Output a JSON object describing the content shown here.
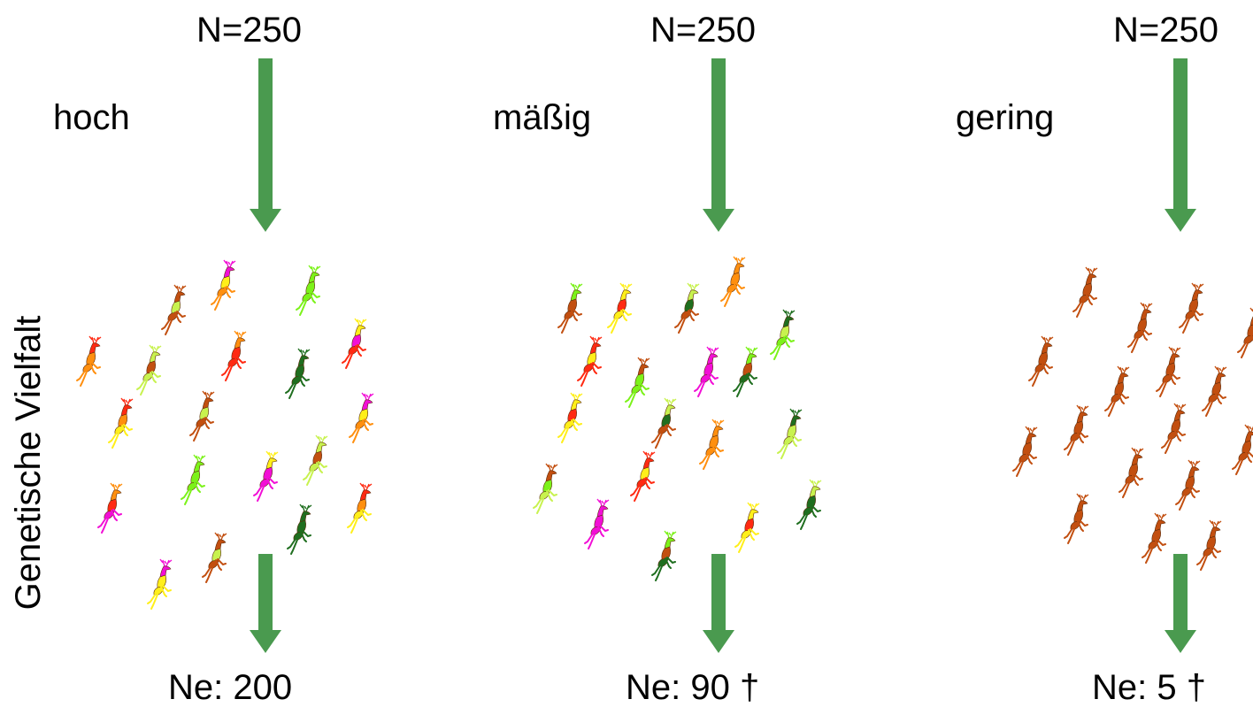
{
  "y_axis_label": "Genetische Vielfalt",
  "colors": {
    "arrow": "#4a9a4f",
    "deer_palette": [
      "#ff2a12",
      "#7cf21a",
      "#ff8f0f",
      "#c24f10",
      "#ffef1a",
      "#1f6e1f",
      "#f20fd6",
      "#c8f24f"
    ]
  },
  "panels": [
    {
      "id": "high",
      "category_label": "hoch",
      "population_label": "N=250",
      "effective_label": "Ne: 200",
      "deer_count": 23,
      "deer_colors": "mixed"
    },
    {
      "id": "moderate",
      "category_label": "mäßig",
      "population_label": "N=250",
      "effective_label": "Ne: 90 †",
      "deer_count": 20,
      "deer_colors": "mixed"
    },
    {
      "id": "low",
      "category_label": "gering",
      "population_label": "N=250",
      "effective_label": "Ne: 5 †",
      "deer_count": 18,
      "deer_colors": "uniform-brown"
    }
  ]
}
